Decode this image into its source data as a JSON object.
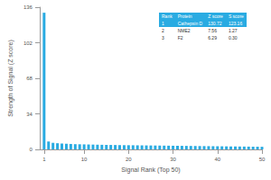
{
  "chart_data": {
    "type": "bar",
    "x": [
      1,
      2,
      3,
      4,
      5,
      6,
      7,
      8,
      9,
      10,
      11,
      12,
      13,
      14,
      15,
      16,
      17,
      18,
      19,
      20,
      21,
      22,
      23,
      24,
      25,
      26,
      27,
      28,
      29,
      30,
      31,
      32,
      33,
      34,
      35,
      36,
      37,
      38,
      39,
      40,
      41,
      42,
      43,
      44,
      45,
      46,
      47,
      48,
      49,
      50
    ],
    "values": [
      130.72,
      7.56,
      6.29,
      5.9,
      5.6,
      5.4,
      5.2,
      5.0,
      4.9,
      4.8,
      4.7,
      4.6,
      4.5,
      4.4,
      4.3,
      4.25,
      4.2,
      4.1,
      4.05,
      4.0,
      3.95,
      3.9,
      3.85,
      3.8,
      3.75,
      3.7,
      3.65,
      3.6,
      3.55,
      3.5,
      3.45,
      3.4,
      3.35,
      3.3,
      3.25,
      3.2,
      3.15,
      3.1,
      3.05,
      3.0,
      2.95,
      2.9,
      2.85,
      2.8,
      2.75,
      2.7,
      2.65,
      2.6,
      2.55,
      2.5
    ],
    "color": "#29abe2",
    "xlabel": "Signal Rank (Top 50)",
    "ylabel": "Strength of Signal (Z score)",
    "xlim": [
      0,
      50
    ],
    "xticks": [
      1,
      10,
      20,
      30,
      40,
      50
    ],
    "ylim": [
      0,
      136
    ],
    "yticks": [
      0,
      34,
      68,
      102,
      136
    ],
    "grid": false
  },
  "table": {
    "header": [
      "Rank",
      "Protein",
      "Z score",
      "S score"
    ],
    "rows": [
      [
        "1",
        "Cathepsin D",
        "130.72",
        "123.16"
      ],
      [
        "2",
        "NME2",
        "7.56",
        "1.27"
      ],
      [
        "3",
        "F2",
        "6.29",
        "0.30"
      ]
    ]
  }
}
